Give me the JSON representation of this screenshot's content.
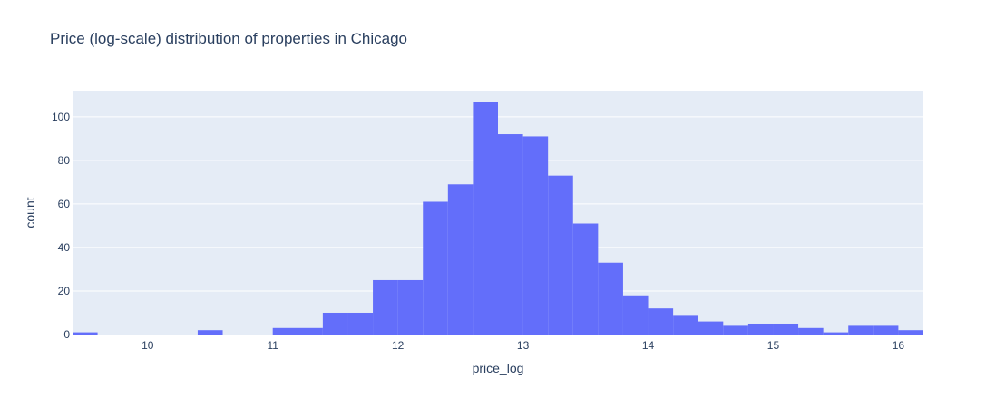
{
  "chart_data": {
    "type": "bar",
    "title": "Price (log-scale) distribution of properties in Chicago",
    "xlabel": "price_log",
    "ylabel": "count",
    "bin_width": 0.2,
    "bins": [
      {
        "start": 9.4,
        "end": 9.6,
        "count": 1
      },
      {
        "start": 10.4,
        "end": 10.6,
        "count": 2
      },
      {
        "start": 11.0,
        "end": 11.2,
        "count": 3
      },
      {
        "start": 11.2,
        "end": 11.4,
        "count": 3
      },
      {
        "start": 11.4,
        "end": 11.6,
        "count": 10
      },
      {
        "start": 11.6,
        "end": 11.8,
        "count": 10
      },
      {
        "start": 11.8,
        "end": 12.0,
        "count": 25
      },
      {
        "start": 12.0,
        "end": 12.2,
        "count": 25
      },
      {
        "start": 12.2,
        "end": 12.4,
        "count": 61
      },
      {
        "start": 12.4,
        "end": 12.6,
        "count": 69
      },
      {
        "start": 12.6,
        "end": 12.8,
        "count": 107
      },
      {
        "start": 12.8,
        "end": 13.0,
        "count": 92
      },
      {
        "start": 13.0,
        "end": 13.2,
        "count": 91
      },
      {
        "start": 13.2,
        "end": 13.4,
        "count": 73
      },
      {
        "start": 13.4,
        "end": 13.6,
        "count": 51
      },
      {
        "start": 13.6,
        "end": 13.8,
        "count": 33
      },
      {
        "start": 13.8,
        "end": 14.0,
        "count": 18
      },
      {
        "start": 14.0,
        "end": 14.2,
        "count": 12
      },
      {
        "start": 14.2,
        "end": 14.4,
        "count": 9
      },
      {
        "start": 14.4,
        "end": 14.6,
        "count": 6
      },
      {
        "start": 14.6,
        "end": 14.8,
        "count": 4
      },
      {
        "start": 14.8,
        "end": 15.0,
        "count": 5
      },
      {
        "start": 15.0,
        "end": 15.2,
        "count": 5
      },
      {
        "start": 15.2,
        "end": 15.4,
        "count": 3
      },
      {
        "start": 15.4,
        "end": 15.6,
        "count": 1
      },
      {
        "start": 15.6,
        "end": 15.8,
        "count": 4
      },
      {
        "start": 15.8,
        "end": 16.0,
        "count": 4
      },
      {
        "start": 16.0,
        "end": 16.2,
        "count": 2
      }
    ],
    "xlim": [
      9.4,
      16.2
    ],
    "ylim": [
      0,
      112
    ],
    "x_ticks": [
      "10",
      "11",
      "12",
      "13",
      "14",
      "15",
      "16"
    ],
    "y_ticks": [
      "0",
      "20",
      "40",
      "60",
      "80",
      "100"
    ],
    "grid": true,
    "bar_color": "#636efa",
    "plot_bg": "#e5ecf6",
    "grid_color": "#ffffff"
  }
}
